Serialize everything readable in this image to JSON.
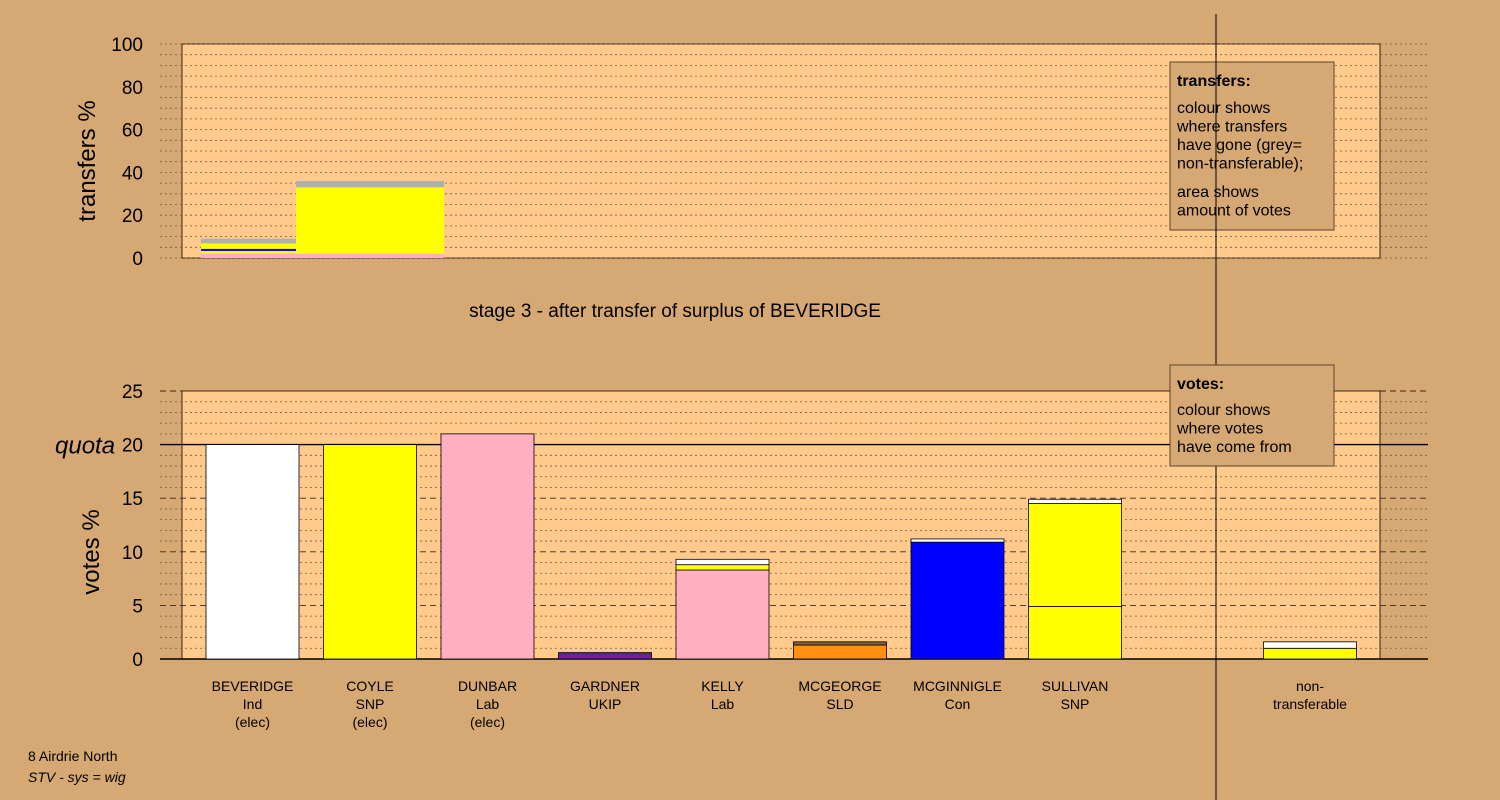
{
  "chart_data": {
    "type": "bar",
    "stage_title": "stage 3 - after transfer of surplus of BEVERIDGE",
    "colors": {
      "background": "#d5a874",
      "plot": "#ffca8c",
      "white": "#ffffff",
      "yellow": "#ffff00",
      "pink": "#ffb0c0",
      "purple": "#7020a0",
      "orange": "#ff9010",
      "blue": "#0000ff",
      "grey": "#b0b0b0",
      "dark": "#806040"
    },
    "transfers": {
      "ylabel": "transfers %",
      "ylim": [
        0,
        100
      ],
      "yticks": [
        "0",
        "20",
        "40",
        "60",
        "80",
        "100"
      ],
      "bars": [
        {
          "segments": [
            {
              "value": 2.0,
              "color": "pink"
            },
            {
              "value": 1.3,
              "color": "yellow"
            },
            {
              "value": 1.0,
              "color": "blue"
            },
            {
              "value": 2.5,
              "color": "yellow"
            },
            {
              "value": 2.2,
              "color": "grey"
            }
          ]
        },
        {
          "segments": [
            {
              "value": 2.0,
              "color": "pink"
            },
            {
              "value": 31.0,
              "color": "yellow"
            },
            {
              "value": 3.0,
              "color": "grey"
            }
          ]
        }
      ],
      "legend": {
        "title": "transfers:",
        "lines": [
          "colour shows",
          "where transfers",
          "have gone (grey=",
          "non-transferable);"
        ],
        "lines2": [
          "area shows",
          "amount of votes"
        ]
      }
    },
    "votes": {
      "ylabel": "votes %",
      "quota_label": "quota",
      "quota": 20,
      "ylim": [
        0,
        25
      ],
      "yticks": [
        "0",
        "5",
        "10",
        "15",
        "20",
        "25"
      ],
      "candidates": [
        {
          "name": "BEVERIDGE",
          "party": "Ind",
          "status": "(elec)",
          "segments": [
            {
              "value": 20.0,
              "color": "white"
            }
          ]
        },
        {
          "name": "COYLE",
          "party": "SNP",
          "status": "(elec)",
          "segments": [
            {
              "value": 20.0,
              "color": "yellow"
            }
          ]
        },
        {
          "name": "DUNBAR",
          "party": "Lab",
          "status": "(elec)",
          "segments": [
            {
              "value": 21.0,
              "color": "pink"
            }
          ]
        },
        {
          "name": "GARDNER",
          "party": "UKIP",
          "status": "",
          "segments": [
            {
              "value": 0.5,
              "color": "purple"
            },
            {
              "value": 0.1,
              "color": "white"
            }
          ]
        },
        {
          "name": "KELLY",
          "party": "Lab",
          "status": "",
          "segments": [
            {
              "value": 8.3,
              "color": "pink"
            },
            {
              "value": 0.5,
              "color": "yellow"
            },
            {
              "value": 0.5,
              "color": "white"
            }
          ]
        },
        {
          "name": "MCGEORGE",
          "party": "SLD",
          "status": "",
          "segments": [
            {
              "value": 1.3,
              "color": "orange"
            },
            {
              "value": 0.3,
              "color": "dark"
            }
          ]
        },
        {
          "name": "MCGINNIGLE",
          "party": "Con",
          "status": "",
          "segments": [
            {
              "value": 10.9,
              "color": "blue"
            },
            {
              "value": 0.3,
              "color": "white"
            }
          ]
        },
        {
          "name": "SULLIVAN",
          "party": "SNP",
          "status": "",
          "segments": [
            {
              "value": 4.9,
              "color": "yellow"
            },
            {
              "value": 9.6,
              "color": "yellow"
            },
            {
              "value": 0.4,
              "color": "white"
            }
          ]
        }
      ],
      "nontransferable": {
        "label1": "non-",
        "label2": "transferable",
        "segments": [
          {
            "value": 1.0,
            "color": "yellow"
          },
          {
            "value": 0.6,
            "color": "white"
          }
        ]
      },
      "legend": {
        "title": "votes:",
        "lines": [
          "colour shows",
          "where votes",
          "have come from"
        ]
      }
    }
  },
  "footer": {
    "ward": "8 Airdrie North",
    "system": "STV - sys = wig"
  }
}
